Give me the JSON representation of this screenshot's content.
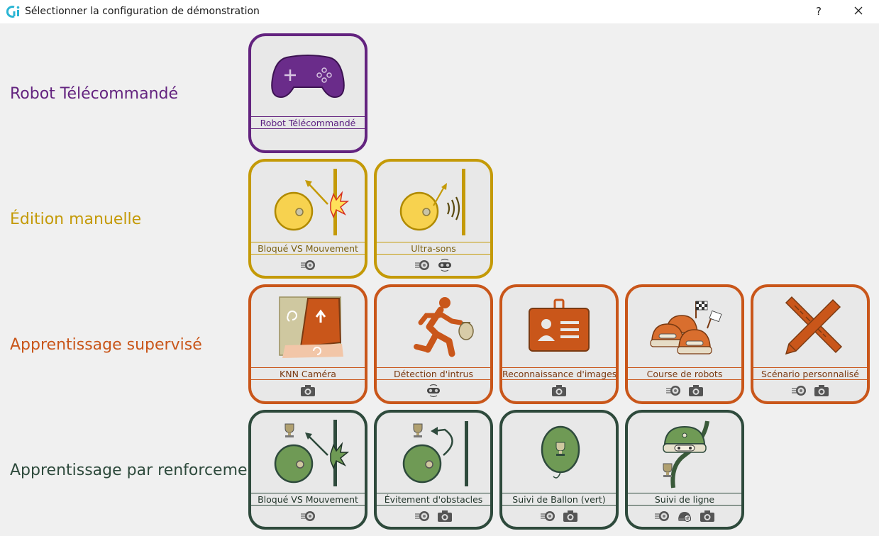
{
  "window": {
    "title": "Sélectionner la configuration de démonstration",
    "help_label": "?"
  },
  "colors": {
    "teleop": "#63237f",
    "manual": "#c49a07",
    "supervised": "#c9561a",
    "reinforcement": "#2e4a3c"
  },
  "sections": [
    {
      "label": "Robot Télécommandé",
      "cards": [
        {
          "name": "Robot Télécommandé",
          "icon": "gamepad-icon",
          "sensors": []
        }
      ]
    },
    {
      "label": "Édition manuelle",
      "cards": [
        {
          "name": "Bloqué VS Mouvement",
          "icon": "robot-collision-icon",
          "sensors": [
            "wheel-sensor-icon"
          ]
        },
        {
          "name": "Ultra-sons",
          "icon": "robot-ultrasound-icon",
          "sensors": [
            "wheel-sensor-icon",
            "ultrasound-sensor-icon"
          ]
        }
      ]
    },
    {
      "label": "Apprentissage supervisé",
      "cards": [
        {
          "name": "KNN Caméra",
          "icon": "knn-camera-icon",
          "sensors": [
            "camera-icon"
          ]
        },
        {
          "name": "Détection d'intrus",
          "icon": "running-intruder-icon",
          "sensors": [
            "ultrasound-sensor-icon"
          ]
        },
        {
          "name": "Reconnaissance d'images",
          "icon": "id-badge-icon",
          "sensors": [
            "camera-icon"
          ]
        },
        {
          "name": "Course de robots",
          "icon": "robot-race-icon",
          "sensors": [
            "wheel-sensor-icon",
            "camera-icon"
          ]
        },
        {
          "name": "Scénario personnalisé",
          "icon": "ruler-pencil-icon",
          "sensors": [
            "wheel-sensor-icon",
            "camera-icon"
          ]
        }
      ]
    },
    {
      "label": "Apprentissage par renforcement",
      "cards": [
        {
          "name": "Bloqué VS Mouvement",
          "icon": "robot-collision-trophy-icon",
          "sensors": [
            "wheel-sensor-icon"
          ]
        },
        {
          "name": "Évitement d'obstacles",
          "icon": "robot-avoid-trophy-icon",
          "sensors": [
            "wheel-sensor-icon",
            "camera-icon"
          ]
        },
        {
          "name": "Suivi de Ballon (vert)",
          "icon": "balloon-trophy-icon",
          "sensors": [
            "wheel-sensor-icon",
            "camera-icon"
          ]
        },
        {
          "name": "Suivi de ligne",
          "icon": "line-follow-icon",
          "sensors": [
            "wheel-sensor-icon",
            "ir-sensor-icon",
            "camera-icon"
          ]
        }
      ]
    }
  ]
}
